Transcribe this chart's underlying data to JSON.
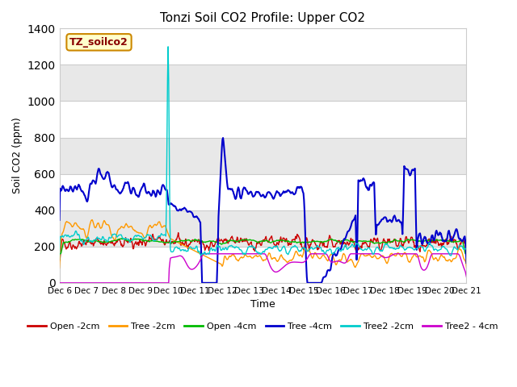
{
  "title": "Tonzi Soil CO2 Profile: Upper CO2",
  "xlabel": "Time",
  "ylabel": "Soil CO2 (ppm)",
  "ylim": [
    0,
    1400
  ],
  "yticks": [
    0,
    200,
    400,
    600,
    800,
    1000,
    1200,
    1400
  ],
  "legend_label": "TZ_soilco2",
  "legend_box_facecolor": "#ffffcc",
  "legend_box_edgecolor": "#cc8800",
  "legend_text_color": "#880000",
  "series_order": [
    "Open_2cm",
    "Tree_2cm",
    "Open_4cm",
    "Tree_4cm",
    "Tree2_2cm",
    "Tree2_4cm"
  ],
  "series": {
    "Open_2cm": {
      "color": "#cc0000",
      "label": "Open -2cm"
    },
    "Tree_2cm": {
      "color": "#ff9900",
      "label": "Tree -2cm"
    },
    "Open_4cm": {
      "color": "#00bb00",
      "label": "Open -4cm"
    },
    "Tree_4cm": {
      "color": "#0000cc",
      "label": "Tree -4cm"
    },
    "Tree2_2cm": {
      "color": "#00cccc",
      "label": "Tree2 -2cm"
    },
    "Tree2_4cm": {
      "color": "#cc00cc",
      "label": "Tree2 - 4cm"
    }
  },
  "bg_bands": [
    "#ffffff",
    "#e8e8e8"
  ],
  "fig_bg": "#ffffff",
  "grid_color": "#cccccc"
}
